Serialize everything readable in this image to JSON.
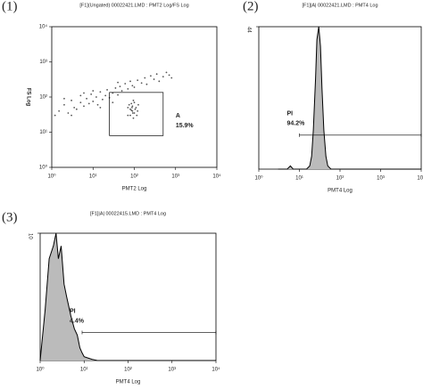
{
  "chart_data": [
    {
      "type": "scatter",
      "panel_label": "(1)",
      "title": "[F1](Ungated) 00022421.LMD : PMT2 Log/FS Log",
      "x_label": "PMT2 Log",
      "y_label": "FS Log",
      "log_x": true,
      "log_y": true,
      "color": "#555555",
      "xlim": [
        1,
        10000
      ],
      "ylim": [
        1,
        10000
      ],
      "xticks": [
        {
          "value": 1,
          "label": "10⁰"
        },
        {
          "value": 10,
          "label": "10¹"
        },
        {
          "value": 100,
          "label": "10²"
        },
        {
          "value": 1000,
          "label": "10³"
        },
        {
          "value": 10000,
          "label": "10⁴"
        }
      ],
      "yticks": [
        {
          "value": 1,
          "label": "10⁰"
        },
        {
          "value": 10,
          "label": "10¹"
        },
        {
          "value": 100,
          "label": "10²"
        },
        {
          "value": 1000,
          "label": "10³"
        },
        {
          "value": 10000,
          "label": "10⁴"
        }
      ],
      "x": [
        1.5,
        2,
        2.5,
        3,
        3.5,
        4,
        5,
        5,
        6,
        7,
        8,
        9,
        10,
        12,
        13,
        15,
        17,
        20,
        22,
        25,
        30,
        35,
        40,
        45,
        50,
        60,
        70,
        80,
        90,
        100,
        120,
        150,
        180,
        200,
        250,
        300,
        350,
        400,
        500,
        600,
        700,
        800,
        3,
        6,
        15,
        30,
        1.2,
        2,
        10,
        40,
        70,
        80,
        90,
        100,
        85,
        110,
        95,
        75,
        120,
        90,
        100,
        80,
        105,
        95,
        88,
        115,
        70,
        125,
        92,
        85
      ],
      "values": [
        40,
        60,
        35,
        80,
        50,
        45,
        70,
        110,
        55,
        90,
        65,
        120,
        75,
        100,
        60,
        140,
        85,
        110,
        160,
        95,
        130,
        180,
        115,
        200,
        150,
        240,
        170,
        280,
        210,
        190,
        300,
        250,
        350,
        230,
        400,
        320,
        450,
        280,
        380,
        500,
        420,
        350,
        30,
        130,
        50,
        70,
        30,
        90,
        150,
        260,
        30,
        45,
        55,
        35,
        65,
        50,
        25,
        60,
        40,
        40,
        70,
        30,
        45,
        80,
        50,
        30,
        50,
        60,
        35,
        42
      ],
      "gates": [
        {
          "name": "A",
          "value": 15.9,
          "value_label": "15.9%",
          "x": [
            25,
            500
          ],
          "y": [
            8,
            135
          ]
        }
      ]
    },
    {
      "type": "area",
      "panel_label": "(2)",
      "title": "[F1]|A| 00022421.LMD : PMT4 Log",
      "x_label": "PMT4 Log",
      "log_x": true,
      "color": "#bbbbbb",
      "xlim": [
        1,
        10000
      ],
      "ylim": [
        0,
        44
      ],
      "xticks": [
        {
          "value": 1,
          "label": "10⁰"
        },
        {
          "value": 10,
          "label": "10¹"
        },
        {
          "value": 100,
          "label": "10²"
        },
        {
          "value": 1000,
          "label": "10³"
        },
        {
          "value": 10000,
          "label": "10⁴"
        }
      ],
      "yticks": [
        44
      ],
      "x": [
        3,
        5,
        6,
        7,
        10,
        15,
        18,
        20,
        22,
        25,
        27,
        30,
        33,
        36,
        40,
        45,
        50,
        60,
        100,
        1000,
        10000
      ],
      "values": [
        0,
        0,
        1,
        0,
        0,
        0,
        1,
        4,
        12,
        28,
        40,
        44,
        38,
        25,
        12,
        4,
        1,
        0,
        0,
        0,
        0
      ],
      "gates": [
        {
          "name": "PI",
          "value": 94.2,
          "value_label": "94.2%",
          "x": [
            10,
            10000
          ],
          "y": 10.5
        }
      ]
    },
    {
      "type": "area",
      "panel_label": "(3)",
      "title": "[F1]|A| 00022415.LMD : PMT4 Log",
      "x_label": "PMT4 Log",
      "log_x": true,
      "color": "#bbbbbb",
      "xlim": [
        1,
        10000
      ],
      "ylim": [
        0,
        10
      ],
      "xticks": [
        {
          "value": 1,
          "label": "10⁰"
        },
        {
          "value": 10,
          "label": "10¹"
        },
        {
          "value": 100,
          "label": "10²"
        },
        {
          "value": 1000,
          "label": "10³"
        },
        {
          "value": 10000,
          "label": "10⁴"
        }
      ],
      "yticks": [
        10
      ],
      "x": [
        1,
        1.3,
        1.6,
        2,
        2.3,
        2.6,
        3,
        3.5,
        4,
        5,
        6,
        7,
        8,
        9,
        10,
        15,
        20,
        100,
        10000
      ],
      "values": [
        0,
        4,
        8,
        9,
        10,
        8,
        9,
        6,
        5,
        3.5,
        2.5,
        2,
        1,
        0.6,
        0.3,
        0.1,
        0,
        0,
        0
      ],
      "gates": [
        {
          "name": "PI",
          "value": 4.4,
          "value_label": "4.4%",
          "x": [
            9,
            10000
          ],
          "y": 2.2
        }
      ]
    }
  ]
}
